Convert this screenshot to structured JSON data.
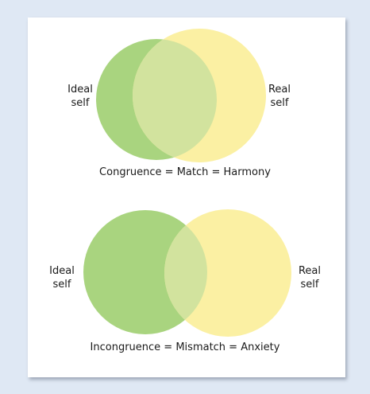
{
  "colors": {
    "background": "#dfe8f4",
    "card": "#ffffff",
    "ideal_circle": "#a9d47f",
    "real_circle": "#fbf0a3",
    "overlap": "#d2e39e",
    "text": "#1a1a1a"
  },
  "diagrams": [
    {
      "left_label": [
        "Ideal",
        "self"
      ],
      "right_label": [
        "Real",
        "self"
      ],
      "caption": "Congruence = Match = Harmony"
    },
    {
      "left_label": [
        "Ideal",
        "self"
      ],
      "right_label": [
        "Real",
        "self"
      ],
      "caption": "Incongruence = Mismatch = Anxiety"
    }
  ]
}
